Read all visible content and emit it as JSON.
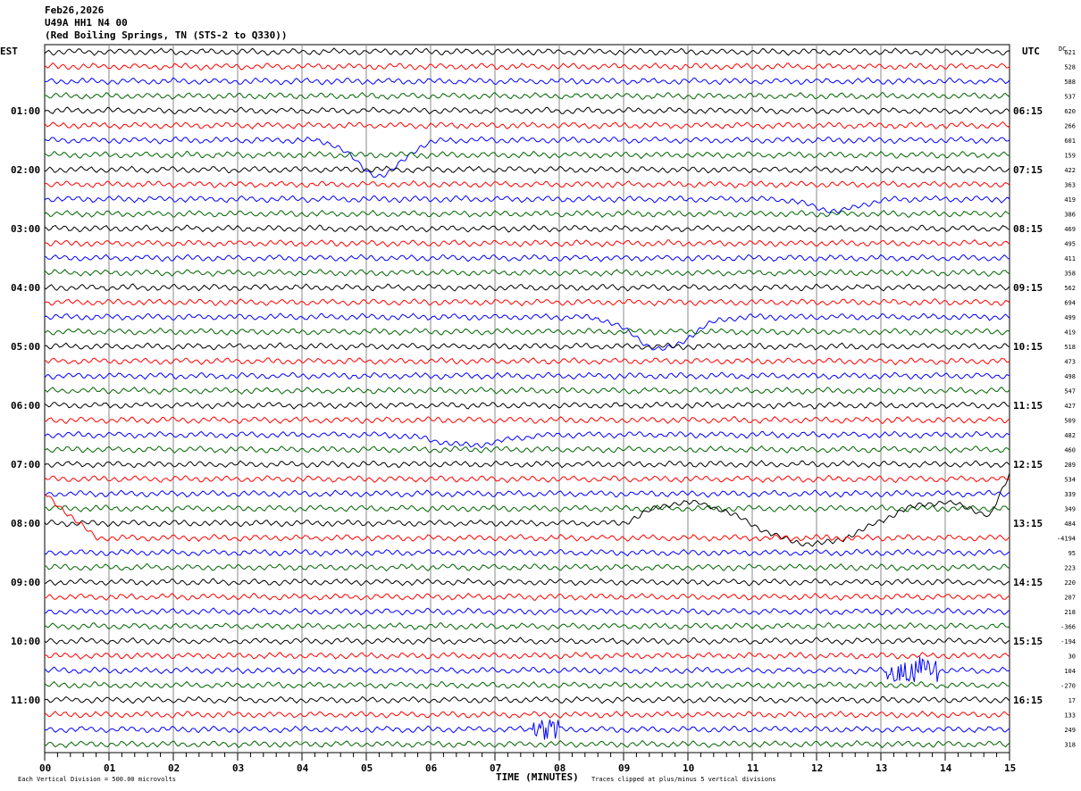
{
  "header": {
    "date": "Feb26,2026",
    "station": "U49A HH1 N4 00",
    "location": "(Red Boiling Springs, TN (STS-2 to Q330))"
  },
  "chart_data": {
    "type": "line",
    "title": "U49A HH1 N4 00 helicorder Feb26,2026",
    "xlabel": "TIME (MINUTES)",
    "xlim": [
      0,
      15
    ],
    "x_ticks": [
      "00",
      "01",
      "02",
      "03",
      "04",
      "05",
      "06",
      "07",
      "08",
      "09",
      "10",
      "11",
      "12",
      "13",
      "14",
      "15"
    ],
    "left_axis_label": "EST",
    "right_axis_label": "UTC",
    "dc_label": "DC",
    "left_times": [
      "01:00",
      "02:00",
      "03:00",
      "04:00",
      "05:00",
      "06:00",
      "07:00",
      "08:00",
      "09:00",
      "10:00",
      "11:00"
    ],
    "right_times": [
      "06:15",
      "07:15",
      "08:15",
      "09:15",
      "10:15",
      "11:15",
      "12:15",
      "13:15",
      "14:15",
      "15:15",
      "16:15"
    ],
    "dc_offsets": [
      "621",
      "528",
      "588",
      "537",
      "620",
      "266",
      "601",
      "159",
      "422",
      "363",
      "419",
      "386",
      "469",
      "495",
      "411",
      "358",
      "562",
      "694",
      "499",
      "419",
      "518",
      "473",
      "498",
      "547",
      "427",
      "509",
      "482",
      "460",
      "289",
      "534",
      "339",
      "349",
      "484",
      "-4194",
      "95",
      "223",
      "220",
      "207",
      "218",
      "-366",
      "-194",
      "30",
      "104",
      "-270",
      "17",
      "133",
      "249",
      "318"
    ],
    "trace_colors": [
      "#000000",
      "#ff0000",
      "#0000ff",
      "#006400"
    ],
    "events": [
      {
        "trace": 6,
        "minute": 5.2,
        "amp": -2.4,
        "width": 0.5,
        "kind": "dip"
      },
      {
        "trace": 10,
        "minute": 12.3,
        "amp": -0.8,
        "width": 0.5,
        "kind": "dip"
      },
      {
        "trace": 18,
        "minute": 9.6,
        "amp": -2.2,
        "width": 0.6,
        "kind": "dip"
      },
      {
        "trace": 26,
        "minute": 6.6,
        "amp": -0.7,
        "width": 0.7,
        "kind": "dip"
      },
      {
        "trace": 33,
        "minute": 0.8,
        "amp": 3,
        "width": 0.6,
        "kind": "drop"
      },
      {
        "trace": 42,
        "minute": 13.5,
        "amp": 0.8,
        "width": 0.4,
        "kind": "burst"
      },
      {
        "trace": 46,
        "minute": 7.8,
        "amp": 0.6,
        "width": 0.2,
        "kind": "burst"
      }
    ],
    "footer": {
      "scale": "Each Vertical Division =  500.00 microvolts",
      "clip": "Traces clipped at plus/minus 5 vertical divisions"
    }
  }
}
